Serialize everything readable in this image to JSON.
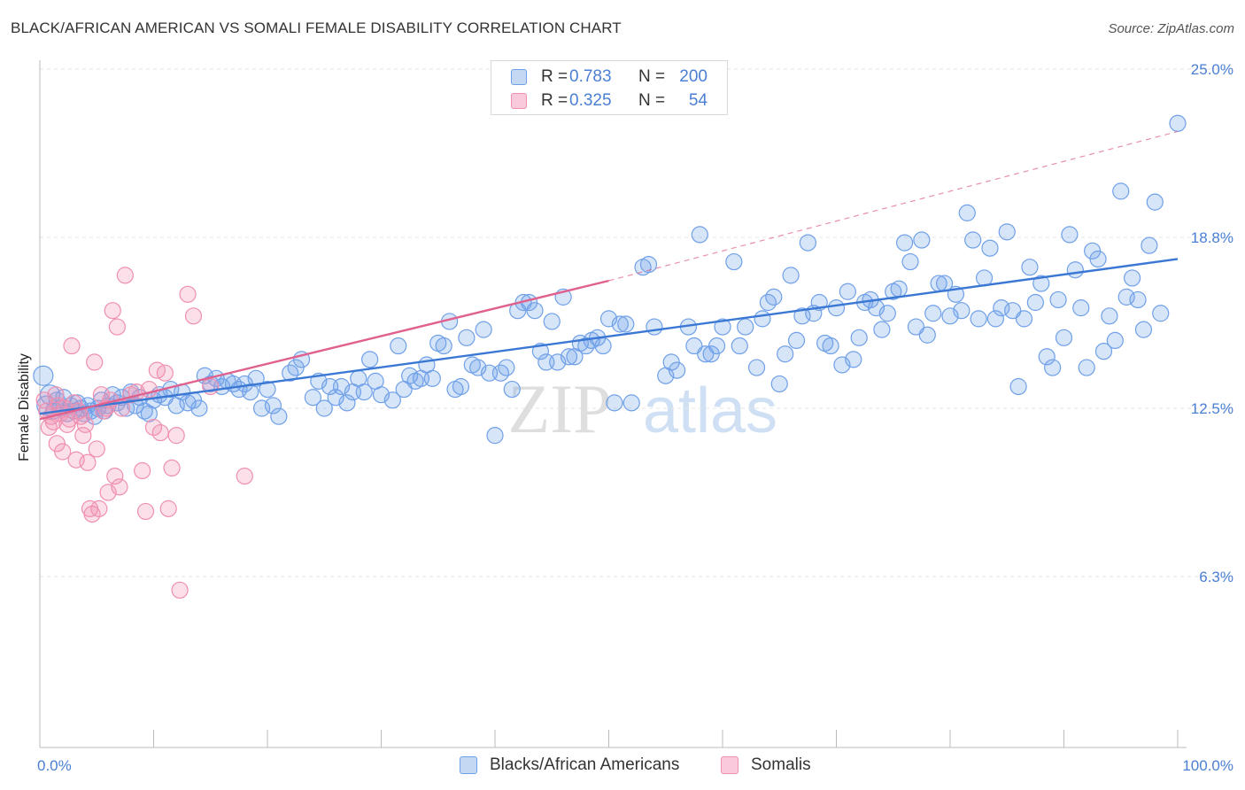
{
  "header": {
    "title": "BLACK/AFRICAN AMERICAN VS SOMALI FEMALE DISABILITY CORRELATION CHART",
    "source": "Source: ZipAtlas.com"
  },
  "watermark": {
    "zip": "ZIP",
    "atlas": "atlas"
  },
  "legend": {
    "rows": [
      {
        "r_label": "R =",
        "r_value": "0.783",
        "n_label": "N =",
        "n_value": "200",
        "color": "#6fa0e8"
      },
      {
        "r_label": "R =",
        "r_value": "0.325",
        "n_label": "N =",
        "n_value": "54",
        "color": "#f08fb0"
      }
    ]
  },
  "bottom_legend": {
    "items": [
      {
        "label": "Blacks/African Americans",
        "color": "#6fa0e8"
      },
      {
        "label": "Somalis",
        "color": "#f08fb0"
      }
    ]
  },
  "chart_data": {
    "type": "scatter",
    "ylabel": "Female Disability",
    "xlim": [
      0,
      100
    ],
    "ylim": [
      0,
      25.0
    ],
    "x_tick_labels": [
      "0.0%",
      "100.0%"
    ],
    "y_ticks": [
      {
        "value": 6.3,
        "label": "6.3%"
      },
      {
        "value": 12.5,
        "label": "12.5%"
      },
      {
        "value": 18.8,
        "label": "18.8%"
      },
      {
        "value": 25.0,
        "label": "25.0%"
      }
    ],
    "grid": "horizontal dashed",
    "series": [
      {
        "name": "Blacks/African Americans",
        "color": "#6fa0e8",
        "line_color": "#3b78d4",
        "trend": {
          "x0": 0,
          "y0": 12.3,
          "x1": 100,
          "y1": 18.0
        },
        "points": [
          [
            0.3,
            13.7
          ],
          [
            0.6,
            12.6
          ],
          [
            0.9,
            13.0
          ],
          [
            1.2,
            12.4
          ],
          [
            1.5,
            12.8
          ],
          [
            1.8,
            12.5
          ],
          [
            2.1,
            12.9
          ],
          [
            2.4,
            12.3
          ],
          [
            2.7,
            12.6
          ],
          [
            3.0,
            12.4
          ],
          [
            3.3,
            12.7
          ],
          [
            3.6,
            12.5
          ],
          [
            3.9,
            12.3
          ],
          [
            4.2,
            12.6
          ],
          [
            4.5,
            12.4
          ],
          [
            4.8,
            12.2
          ],
          [
            5.1,
            12.5
          ],
          [
            5.4,
            12.8
          ],
          [
            5.7,
            12.4
          ],
          [
            6.0,
            12.6
          ],
          [
            6.4,
            13.0
          ],
          [
            6.8,
            12.7
          ],
          [
            7.2,
            12.9
          ],
          [
            7.6,
            12.5
          ],
          [
            8.0,
            13.1
          ],
          [
            8.4,
            12.6
          ],
          [
            8.8,
            12.9
          ],
          [
            9.2,
            12.4
          ],
          [
            9.6,
            12.3
          ],
          [
            10.0,
            12.8
          ],
          [
            10.5,
            13.0
          ],
          [
            11.0,
            12.9
          ],
          [
            11.5,
            13.2
          ],
          [
            12.0,
            12.6
          ],
          [
            12.5,
            13.1
          ],
          [
            13.0,
            12.7
          ],
          [
            13.5,
            12.8
          ],
          [
            14.0,
            12.5
          ],
          [
            14.5,
            13.7
          ],
          [
            15.0,
            13.4
          ],
          [
            15.5,
            13.6
          ],
          [
            16.0,
            13.3
          ],
          [
            16.5,
            13.5
          ],
          [
            17.0,
            13.4
          ],
          [
            17.5,
            13.2
          ],
          [
            18.0,
            13.4
          ],
          [
            18.5,
            13.1
          ],
          [
            19.0,
            13.6
          ],
          [
            19.5,
            12.5
          ],
          [
            20.0,
            13.2
          ],
          [
            20.5,
            12.6
          ],
          [
            21.0,
            12.2
          ],
          [
            22.0,
            13.8
          ],
          [
            22.5,
            14.0
          ],
          [
            23.0,
            14.3
          ],
          [
            24.0,
            12.9
          ],
          [
            24.5,
            13.5
          ],
          [
            25.0,
            12.5
          ],
          [
            25.5,
            13.3
          ],
          [
            26.0,
            12.9
          ],
          [
            26.5,
            13.3
          ],
          [
            27.0,
            12.7
          ],
          [
            27.5,
            13.1
          ],
          [
            28.0,
            13.6
          ],
          [
            28.5,
            13.1
          ],
          [
            29.0,
            14.3
          ],
          [
            29.5,
            13.5
          ],
          [
            30.0,
            13.0
          ],
          [
            31.0,
            12.8
          ],
          [
            31.5,
            14.8
          ],
          [
            32.0,
            13.2
          ],
          [
            32.5,
            13.7
          ],
          [
            33.0,
            13.5
          ],
          [
            33.5,
            13.6
          ],
          [
            34.0,
            14.1
          ],
          [
            34.5,
            13.6
          ],
          [
            35.0,
            14.9
          ],
          [
            35.5,
            14.8
          ],
          [
            36.0,
            15.7
          ],
          [
            36.5,
            13.2
          ],
          [
            37.0,
            13.3
          ],
          [
            37.5,
            15.1
          ],
          [
            38.0,
            14.1
          ],
          [
            38.5,
            14.0
          ],
          [
            39.0,
            15.4
          ],
          [
            39.5,
            13.8
          ],
          [
            40.0,
            11.5
          ],
          [
            40.5,
            13.8
          ],
          [
            41.0,
            14.0
          ],
          [
            41.5,
            13.2
          ],
          [
            42.0,
            16.1
          ],
          [
            42.5,
            16.4
          ],
          [
            43.0,
            16.4
          ],
          [
            43.5,
            16.1
          ],
          [
            44.0,
            14.6
          ],
          [
            44.5,
            14.2
          ],
          [
            45.0,
            15.7
          ],
          [
            45.5,
            14.2
          ],
          [
            46.0,
            16.6
          ],
          [
            46.5,
            14.4
          ],
          [
            47.0,
            14.4
          ],
          [
            47.5,
            14.9
          ],
          [
            48.0,
            14.8
          ],
          [
            48.5,
            15.0
          ],
          [
            49.0,
            15.1
          ],
          [
            49.5,
            14.8
          ],
          [
            50.0,
            15.8
          ],
          [
            50.5,
            12.7
          ],
          [
            51.0,
            15.6
          ],
          [
            51.5,
            15.6
          ],
          [
            52.0,
            12.7
          ],
          [
            53.0,
            17.7
          ],
          [
            53.5,
            17.8
          ],
          [
            54.0,
            15.5
          ],
          [
            55.0,
            13.7
          ],
          [
            55.5,
            14.2
          ],
          [
            56.0,
            13.9
          ],
          [
            57.0,
            15.5
          ],
          [
            57.5,
            14.8
          ],
          [
            58.0,
            18.9
          ],
          [
            58.5,
            14.5
          ],
          [
            59.0,
            14.5
          ],
          [
            59.5,
            14.8
          ],
          [
            60.0,
            15.5
          ],
          [
            61.0,
            17.9
          ],
          [
            61.5,
            14.8
          ],
          [
            62.0,
            15.5
          ],
          [
            63.0,
            14.0
          ],
          [
            63.5,
            15.8
          ],
          [
            64.0,
            16.4
          ],
          [
            64.5,
            16.6
          ],
          [
            65.0,
            13.4
          ],
          [
            65.5,
            14.5
          ],
          [
            66.0,
            17.4
          ],
          [
            66.5,
            15.0
          ],
          [
            67.0,
            15.9
          ],
          [
            67.5,
            18.6
          ],
          [
            68.0,
            16.0
          ],
          [
            68.5,
            16.4
          ],
          [
            69.0,
            14.9
          ],
          [
            69.5,
            14.8
          ],
          [
            70.0,
            16.2
          ],
          [
            70.5,
            14.1
          ],
          [
            71.0,
            16.8
          ],
          [
            71.5,
            14.3
          ],
          [
            72.0,
            15.1
          ],
          [
            72.5,
            16.4
          ],
          [
            73.0,
            16.5
          ],
          [
            73.5,
            16.2
          ],
          [
            74.0,
            15.4
          ],
          [
            74.5,
            16.0
          ],
          [
            75.0,
            16.8
          ],
          [
            75.5,
            16.9
          ],
          [
            76.0,
            18.6
          ],
          [
            76.5,
            17.9
          ],
          [
            77.0,
            15.5
          ],
          [
            77.5,
            18.7
          ],
          [
            78.0,
            15.2
          ],
          [
            78.5,
            16.0
          ],
          [
            79.0,
            17.1
          ],
          [
            79.5,
            17.1
          ],
          [
            80.0,
            15.9
          ],
          [
            80.5,
            16.7
          ],
          [
            81.0,
            16.1
          ],
          [
            81.5,
            19.7
          ],
          [
            82.0,
            18.7
          ],
          [
            82.5,
            15.8
          ],
          [
            83.0,
            17.3
          ],
          [
            83.5,
            18.4
          ],
          [
            84.0,
            15.8
          ],
          [
            84.5,
            16.2
          ],
          [
            85.0,
            19.0
          ],
          [
            85.5,
            16.1
          ],
          [
            86.0,
            13.3
          ],
          [
            86.5,
            15.8
          ],
          [
            87.0,
            17.7
          ],
          [
            87.5,
            16.4
          ],
          [
            88.0,
            17.1
          ],
          [
            88.5,
            14.4
          ],
          [
            89.0,
            14.0
          ],
          [
            89.5,
            16.5
          ],
          [
            90.0,
            15.1
          ],
          [
            90.5,
            18.9
          ],
          [
            91.0,
            17.6
          ],
          [
            91.5,
            16.2
          ],
          [
            92.0,
            14.0
          ],
          [
            92.5,
            18.3
          ],
          [
            93.0,
            18.0
          ],
          [
            93.5,
            14.6
          ],
          [
            94.0,
            15.9
          ],
          [
            94.5,
            15.0
          ],
          [
            95.0,
            20.5
          ],
          [
            95.5,
            16.6
          ],
          [
            96.0,
            17.3
          ],
          [
            96.5,
            16.5
          ],
          [
            97.0,
            15.4
          ],
          [
            97.5,
            18.5
          ],
          [
            98.0,
            20.1
          ],
          [
            98.5,
            16.0
          ],
          [
            100.0,
            23.0
          ]
        ]
      },
      {
        "name": "Somalis",
        "color": "#f08fb0",
        "line_color": "#e0608e",
        "trend": {
          "x0": 0,
          "y0": 12.1,
          "x1": 50,
          "y1": 17.2
        },
        "trend_ext": {
          "x0": 50,
          "y0": 17.2,
          "x1": 100,
          "y1": 22.7
        },
        "points": [
          [
            0.4,
            12.8
          ],
          [
            0.6,
            12.4
          ],
          [
            0.8,
            11.8
          ],
          [
            1.0,
            12.2
          ],
          [
            1.2,
            12.0
          ],
          [
            1.4,
            13.0
          ],
          [
            1.5,
            11.2
          ],
          [
            1.6,
            12.6
          ],
          [
            1.8,
            12.3
          ],
          [
            2.0,
            10.9
          ],
          [
            2.2,
            12.5
          ],
          [
            2.4,
            11.9
          ],
          [
            2.6,
            12.1
          ],
          [
            2.8,
            14.8
          ],
          [
            3.0,
            12.7
          ],
          [
            3.2,
            10.6
          ],
          [
            3.4,
            12.4
          ],
          [
            3.6,
            12.2
          ],
          [
            3.8,
            11.5
          ],
          [
            4.0,
            11.9
          ],
          [
            4.2,
            10.5
          ],
          [
            4.4,
            8.8
          ],
          [
            4.6,
            8.6
          ],
          [
            4.8,
            14.2
          ],
          [
            5.0,
            11.0
          ],
          [
            5.2,
            8.8
          ],
          [
            5.4,
            13.0
          ],
          [
            5.6,
            12.4
          ],
          [
            5.8,
            12.5
          ],
          [
            6.0,
            9.4
          ],
          [
            6.2,
            12.8
          ],
          [
            6.4,
            16.1
          ],
          [
            6.6,
            10.0
          ],
          [
            6.8,
            15.5
          ],
          [
            7.0,
            9.6
          ],
          [
            7.2,
            12.5
          ],
          [
            7.5,
            17.4
          ],
          [
            8.0,
            13.0
          ],
          [
            8.5,
            13.1
          ],
          [
            9.0,
            10.2
          ],
          [
            9.3,
            8.7
          ],
          [
            9.6,
            13.2
          ],
          [
            10.0,
            11.8
          ],
          [
            10.3,
            13.9
          ],
          [
            10.6,
            11.6
          ],
          [
            11.0,
            13.8
          ],
          [
            11.3,
            8.8
          ],
          [
            11.6,
            10.3
          ],
          [
            12.0,
            11.5
          ],
          [
            12.3,
            5.8
          ],
          [
            13.0,
            16.7
          ],
          [
            13.5,
            15.9
          ],
          [
            15.0,
            13.3
          ],
          [
            18.0,
            10.0
          ]
        ]
      }
    ]
  }
}
